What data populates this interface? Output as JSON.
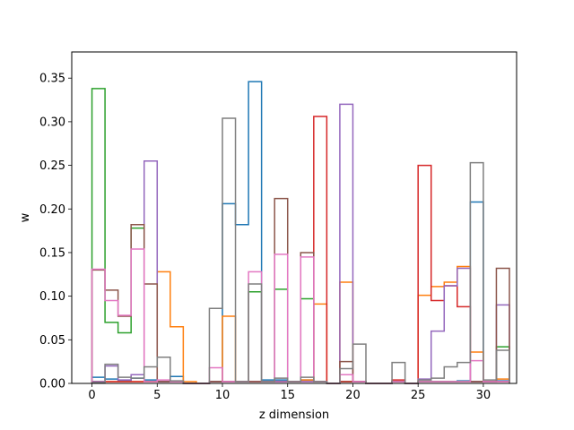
{
  "chart_data": {
    "type": "step-histogram",
    "xlabel": "z dimension",
    "ylabel": "w",
    "xlim": [
      -1.55,
      32.55
    ],
    "ylim": [
      0,
      0.38
    ],
    "x_ticks": [
      0,
      5,
      10,
      15,
      20,
      25,
      30
    ],
    "y_ticks": [
      0.0,
      0.05,
      0.1,
      0.15,
      0.2,
      0.25,
      0.3,
      0.35
    ],
    "y_tick_labels": [
      "0.00",
      "0.05",
      "0.10",
      "0.15",
      "0.20",
      "0.25",
      "0.30",
      "0.35"
    ],
    "bin_edges_start": 0,
    "bin_width": 1,
    "grid": false,
    "series": [
      {
        "color": "#1f77b4",
        "values": [
          0.007,
          0.005,
          0.003,
          0.006,
          0.004,
          0.002,
          0.008,
          0,
          0,
          0.002,
          0.206,
          0.182,
          0.346,
          0.004,
          0.004,
          0.002,
          0.004,
          0.002,
          0,
          0.002,
          0.002,
          0,
          0,
          0.002,
          0,
          0.002,
          0.002,
          0.002,
          0.003,
          0.208,
          0.002,
          0.003
        ]
      },
      {
        "color": "#ff7f0e",
        "values": [
          0.002,
          0.002,
          0.002,
          0.002,
          0.002,
          0.128,
          0.065,
          0.002,
          0,
          0.002,
          0.077,
          0.002,
          0.002,
          0.002,
          0.002,
          0.002,
          0.004,
          0.091,
          0,
          0.116,
          0.002,
          0,
          0,
          0.002,
          0,
          0.101,
          0.111,
          0.116,
          0.134,
          0.036,
          0.002,
          0.005
        ]
      },
      {
        "color": "#2ca02c",
        "values": [
          0.338,
          0.07,
          0.058,
          0.178,
          0.002,
          0.002,
          0.002,
          0,
          0,
          0.002,
          0.002,
          0.002,
          0.105,
          0.002,
          0.108,
          0.002,
          0.097,
          0.002,
          0,
          0.002,
          0.002,
          0,
          0,
          0.002,
          0,
          0.002,
          0.002,
          0.002,
          0.002,
          0.002,
          0.002,
          0.042
        ]
      },
      {
        "color": "#d62728",
        "values": [
          0.002,
          0.002,
          0.002,
          0.002,
          0.002,
          0.002,
          0.002,
          0,
          0,
          0.002,
          0.002,
          0.002,
          0.002,
          0.002,
          0.002,
          0.002,
          0.002,
          0.306,
          0,
          0.002,
          0.002,
          0,
          0,
          0.004,
          0,
          0.25,
          0.095,
          0.112,
          0.088,
          0.002,
          0.002,
          0.002
        ]
      },
      {
        "color": "#9467bd",
        "values": [
          0.002,
          0.02,
          0.004,
          0.01,
          0.255,
          0.002,
          0.002,
          0,
          0,
          0.002,
          0.002,
          0.002,
          0.002,
          0.002,
          0.002,
          0.002,
          0.002,
          0.002,
          0,
          0.32,
          0.002,
          0,
          0,
          0.002,
          0,
          0.005,
          0.06,
          0.112,
          0.132,
          0.002,
          0.002,
          0.09
        ]
      },
      {
        "color": "#8c564b",
        "values": [
          0.13,
          0.107,
          0.077,
          0.182,
          0.114,
          0.002,
          0.002,
          0,
          0,
          0.002,
          0.002,
          0.002,
          0.002,
          0.002,
          0.212,
          0.002,
          0.15,
          0.002,
          0,
          0.025,
          0.002,
          0,
          0,
          0.002,
          0,
          0.002,
          0.002,
          0.002,
          0.002,
          0.002,
          0.002,
          0.132
        ]
      },
      {
        "color": "#e377c2",
        "values": [
          0.131,
          0.095,
          0.078,
          0.154,
          0.002,
          0.004,
          0.002,
          0,
          0,
          0.018,
          0.002,
          0.002,
          0.128,
          0.002,
          0.148,
          0.002,
          0.145,
          0.002,
          0,
          0.01,
          0.002,
          0,
          0,
          0.002,
          0,
          0.002,
          0.002,
          0.002,
          0.002,
          0.026,
          0.002,
          0.002
        ]
      },
      {
        "color": "#7f7f7f",
        "values": [
          0.001,
          0.022,
          0.007,
          0.006,
          0.019,
          0.03,
          0.003,
          0,
          0,
          0.086,
          0.304,
          0.002,
          0.114,
          0.002,
          0.006,
          0.002,
          0.007,
          0.002,
          0,
          0.017,
          0.045,
          0,
          0,
          0.024,
          0,
          0.004,
          0.006,
          0.019,
          0.024,
          0.253,
          0.004,
          0.038
        ]
      }
    ]
  }
}
